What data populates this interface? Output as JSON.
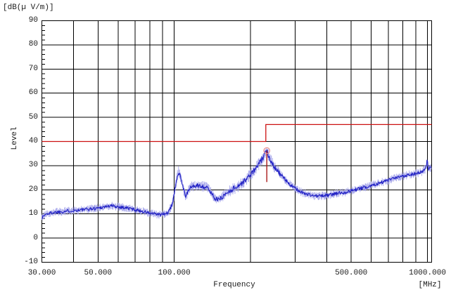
{
  "colors": {
    "background": "#ffffff",
    "grid": "#000000",
    "text": "#1a1a1a",
    "trace": "#2121c4",
    "trace_halo": "#a2a2ea",
    "limit": "#cc1111",
    "marker_circle": "#e89090",
    "marker_line": "#aa1818"
  },
  "chart_data": {
    "type": "line",
    "title": "",
    "x_axis": {
      "label": "Frequency",
      "unit_label": "[MHz]",
      "scale": "log",
      "min": 30,
      "max": 1039,
      "gridlines": [
        40,
        50,
        60,
        70,
        80,
        90,
        100,
        200,
        300,
        400,
        500,
        600,
        700,
        800,
        900,
        1000
      ],
      "tick_labels": [
        {
          "value": 30,
          "label": "30.000"
        },
        {
          "value": 50,
          "label": "50.000"
        },
        {
          "value": 100,
          "label": "100.000"
        },
        {
          "value": 500,
          "label": "500.000"
        },
        {
          "value": 1000,
          "label": "1000.000"
        }
      ]
    },
    "y_axis": {
      "label": "Level",
      "unit_label": "[dB(µ V/m)]",
      "min": -10,
      "max": 90,
      "tick_step": 10,
      "minor_tick_step": 2,
      "ticks": [
        90,
        80,
        70,
        60,
        50,
        40,
        30,
        20,
        10,
        0,
        -10
      ]
    },
    "noise": {
      "base_amp_db": 1.5,
      "boost": [
        {
          "from": 96,
          "to": 160,
          "amp": 2.0
        },
        {
          "from": 165,
          "to": 262,
          "amp": 2.3
        },
        {
          "from": 960,
          "to": 1039,
          "amp": 1.9
        }
      ]
    },
    "series": [
      {
        "name": "measured-emission",
        "style": "noisy-line",
        "points": [
          [
            30,
            8.5
          ],
          [
            31,
            9.8
          ],
          [
            33,
            10.6
          ],
          [
            36,
            11.0
          ],
          [
            40,
            11.4
          ],
          [
            44,
            11.8
          ],
          [
            48,
            12.2
          ],
          [
            52,
            12.8
          ],
          [
            56,
            13.4
          ],
          [
            60,
            13.0
          ],
          [
            64,
            12.6
          ],
          [
            68,
            12.1
          ],
          [
            72,
            11.5
          ],
          [
            76,
            10.9
          ],
          [
            80,
            10.3
          ],
          [
            84,
            9.9
          ],
          [
            88,
            9.7
          ],
          [
            92,
            9.9
          ],
          [
            95,
            10.8
          ],
          [
            97,
            12.5
          ],
          [
            99,
            16.0
          ],
          [
            101,
            21.0
          ],
          [
            103,
            26.0
          ],
          [
            104,
            27.5
          ],
          [
            105.5,
            26.3
          ],
          [
            107,
            23.5
          ],
          [
            109,
            20.0
          ],
          [
            111,
            17.3
          ],
          [
            113,
            18.8
          ],
          [
            115,
            20.6
          ],
          [
            118,
            21.4
          ],
          [
            122,
            21.6
          ],
          [
            126,
            21.7
          ],
          [
            130,
            21.4
          ],
          [
            134,
            20.9
          ],
          [
            138,
            19.6
          ],
          [
            142,
            17.8
          ],
          [
            146,
            16.2
          ],
          [
            150,
            15.9
          ],
          [
            154,
            16.8
          ],
          [
            158,
            17.9
          ],
          [
            163,
            19.0
          ],
          [
            168,
            20.0
          ],
          [
            174,
            20.9
          ],
          [
            181,
            22.0
          ],
          [
            188,
            23.4
          ],
          [
            195,
            25.0
          ],
          [
            202,
            26.8
          ],
          [
            209,
            28.6
          ],
          [
            216,
            30.7
          ],
          [
            222,
            32.6
          ],
          [
            227,
            34.3
          ],
          [
            230,
            35.4
          ],
          [
            232,
            36.2
          ],
          [
            234,
            35.0
          ],
          [
            237,
            33.6
          ],
          [
            241,
            32.0
          ],
          [
            246,
            30.4
          ],
          [
            252,
            28.8
          ],
          [
            259,
            27.2
          ],
          [
            267,
            25.5
          ],
          [
            277,
            23.7
          ],
          [
            288,
            22.0
          ],
          [
            300,
            20.6
          ],
          [
            313,
            19.4
          ],
          [
            327,
            18.5
          ],
          [
            342,
            17.9
          ],
          [
            358,
            17.5
          ],
          [
            375,
            17.4
          ],
          [
            392,
            17.6
          ],
          [
            412,
            17.9
          ],
          [
            432,
            18.3
          ],
          [
            452,
            18.8
          ],
          [
            467,
            18.9
          ],
          [
            482,
            19.1
          ],
          [
            500,
            19.6
          ],
          [
            525,
            20.2
          ],
          [
            550,
            20.7
          ],
          [
            575,
            21.2
          ],
          [
            600,
            21.8
          ],
          [
            630,
            22.5
          ],
          [
            660,
            23.1
          ],
          [
            695,
            23.8
          ],
          [
            730,
            24.5
          ],
          [
            770,
            25.2
          ],
          [
            810,
            25.8
          ],
          [
            850,
            26.3
          ],
          [
            890,
            26.7
          ],
          [
            925,
            27.0
          ],
          [
            955,
            27.5
          ],
          [
            975,
            28.2
          ],
          [
            988,
            29.2
          ],
          [
            996,
            31.3
          ],
          [
            1000,
            31.8
          ],
          [
            1004,
            29.8
          ],
          [
            1012,
            28.7
          ],
          [
            1024,
            28.8
          ],
          [
            1039,
            29.4
          ]
        ]
      },
      {
        "name": "limit-line",
        "style": "step-line",
        "points": [
          [
            30,
            40
          ],
          [
            230,
            40
          ],
          [
            230,
            47
          ],
          [
            1039,
            47
          ]
        ]
      }
    ],
    "marker": {
      "freq": 232,
      "level": 36.2,
      "drop_db": 13
    }
  }
}
